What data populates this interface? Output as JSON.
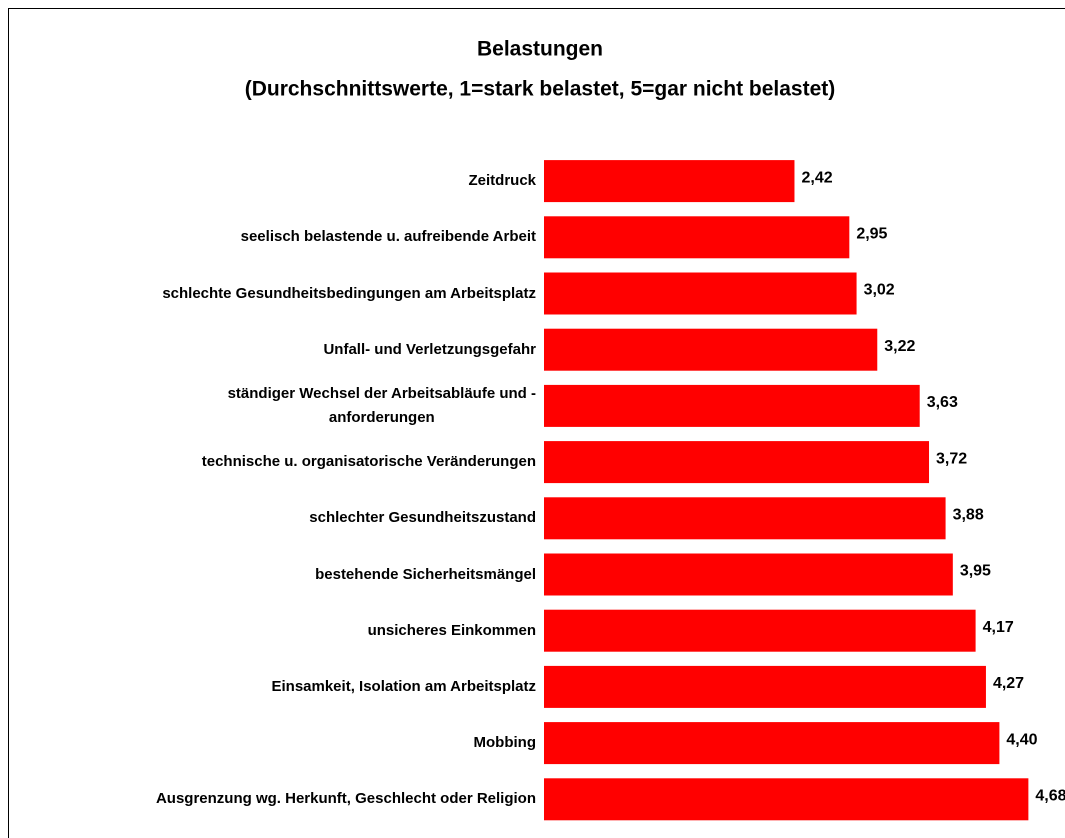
{
  "chart_data": {
    "type": "bar",
    "orientation": "horizontal",
    "title": "Belastungen",
    "subtitle": "(Durchschnittswerte, 1=stark belastet, 5=gar nicht belastet)",
    "categories": [
      "Zeitdruck",
      "seelisch belastende u. aufreibende Arbeit",
      "schlechte Gesundheitsbedingungen am Arbeitsplatz",
      "Unfall- und Verletzungsgefahr",
      "ständiger Wechsel der Arbeitsabläufe und -\nanforderungen",
      "technische u. organisatorische Veränderungen",
      "schlechter Gesundheitszustand",
      "bestehende Sicherheitsmängel",
      "unsicheres Einkommen",
      "Einsamkeit, Isolation am Arbeitsplatz",
      "Mobbing",
      "Ausgrenzung wg. Herkunft, Geschlecht oder Religion"
    ],
    "values": [
      2.42,
      2.95,
      3.02,
      3.22,
      3.63,
      3.72,
      3.88,
      3.95,
      4.17,
      4.27,
      4.4,
      4.68
    ],
    "value_labels": [
      "2,42",
      "2,95",
      "3,02",
      "3,22",
      "3,63",
      "3,72",
      "3,88",
      "3,95",
      "4,17",
      "4,27",
      "4,40",
      "4,68"
    ],
    "color": "#ff0000",
    "xlim": [
      0,
      5
    ]
  }
}
